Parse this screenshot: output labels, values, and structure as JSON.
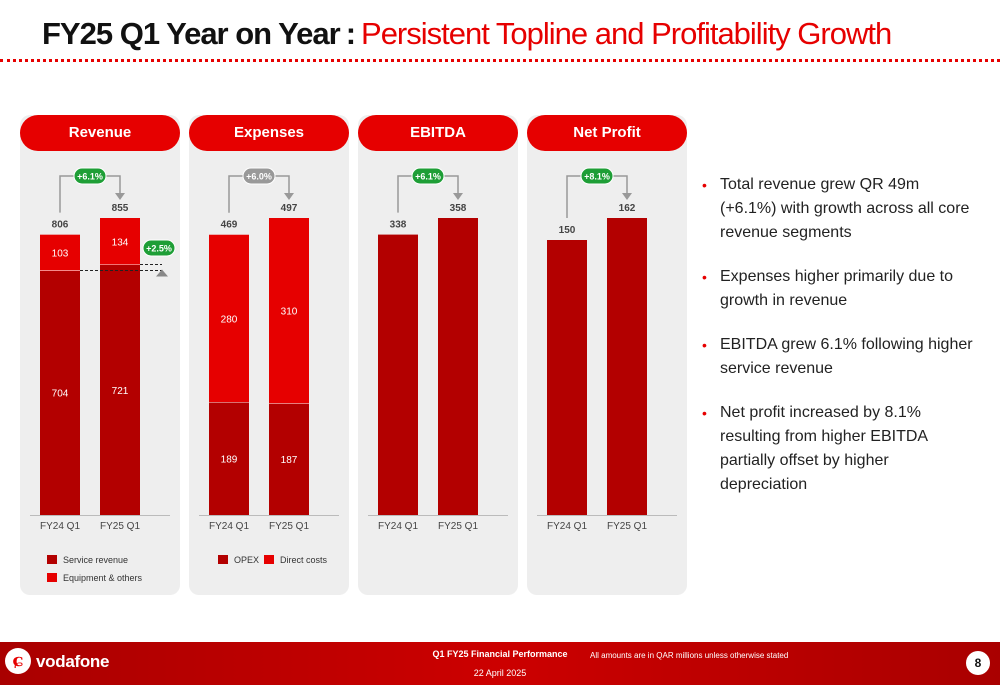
{
  "title": {
    "bold": "FY25 Q1 Year on Year",
    "separator": ":",
    "subtitle": "Persistent Topline and Profitability Growth"
  },
  "colors": {
    "accent": "#e60000",
    "dark_red": "#b30000",
    "panel_bg": "#eeeeee",
    "green_badge": "#1e9e36",
    "gray_badge": "#999999"
  },
  "chart_data": [
    {
      "type": "bar",
      "title": "Revenue",
      "stacked": true,
      "categories": [
        "FY24 Q1",
        "FY25 Q1"
      ],
      "series": [
        {
          "name": "Service revenue",
          "values": [
            704,
            721
          ],
          "color": "#b30000"
        },
        {
          "name": "Equipment & others",
          "values": [
            103,
            134
          ],
          "color": "#e60000"
        }
      ],
      "totals": [
        "806",
        "855"
      ],
      "growth": "+6.1%",
      "growth_badge_color": "#1e9e36",
      "secondary_growth": "+2.5%",
      "legend": "bottom",
      "ylim": [
        0,
        855
      ]
    },
    {
      "type": "bar",
      "title": "Expenses",
      "stacked": true,
      "categories": [
        "FY24 Q1",
        "FY25 Q1"
      ],
      "series": [
        {
          "name": "OPEX",
          "values": [
            189,
            187
          ],
          "color": "#b30000"
        },
        {
          "name": "Direct costs",
          "values": [
            280,
            310
          ],
          "color": "#e60000"
        }
      ],
      "totals": [
        "469",
        "497"
      ],
      "growth": "+6.0%",
      "growth_badge_color": "#999999",
      "legend": "bottom",
      "ylim": [
        0,
        497
      ]
    },
    {
      "type": "bar",
      "title": "EBITDA",
      "stacked": false,
      "categories": [
        "FY24 Q1",
        "FY25 Q1"
      ],
      "series": [
        {
          "values": [
            338,
            358
          ],
          "color": "#b30000"
        }
      ],
      "totals": [
        "338",
        "358"
      ],
      "growth": "+6.1%",
      "growth_badge_color": "#1e9e36",
      "ylim": [
        0,
        358
      ]
    },
    {
      "type": "bar",
      "title": "Net Profit",
      "stacked": false,
      "categories": [
        "FY24 Q1",
        "FY25 Q1"
      ],
      "series": [
        {
          "values": [
            150,
            162
          ],
          "color": "#b30000"
        }
      ],
      "totals": [
        "150",
        "162"
      ],
      "growth": "+8.1%",
      "growth_badge_color": "#1e9e36",
      "ylim": [
        0,
        162
      ]
    }
  ],
  "bullets": [
    "Total revenue grew QR 49m (+6.1%) with growth across all core revenue segments",
    "Expenses higher primarily due to growth in revenue",
    "EBITDA grew 6.1% following higher service revenue",
    "Net profit increased by 8.1% resulting from higher EBITDA partially offset by higher depreciation"
  ],
  "footer": {
    "brand": "vodafone",
    "logo_glyph": "ɕ",
    "report_title": "Q1 FY25 Financial Performance",
    "date": "22 April 2025",
    "note": "All amounts are in QAR millions unless otherwise stated",
    "page_number": "8"
  }
}
